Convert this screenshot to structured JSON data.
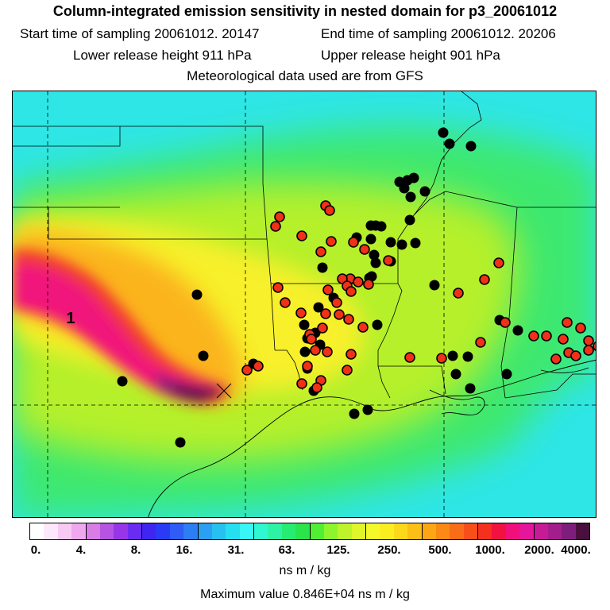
{
  "title": "Column-integrated emission sensitivity in nested domain for p3_20061012",
  "start_label": "Start time of sampling 20061012. 20147",
  "end_label": "End time of sampling 20061012. 20206",
  "lower_label": "Lower release height  911 hPa",
  "upper_label": "Upper release height  901 hPa",
  "met_label": "Meteorological data used are from GFS",
  "map_label": "1",
  "colorbar": {
    "ticks": [
      "0.",
      "4.",
      "8.",
      "16.",
      "31.",
      "63.",
      "125.",
      "250.",
      "500.",
      "1000.",
      "2000.",
      "4000."
    ],
    "colors": [
      "#ffffff",
      "#fde8fb",
      "#f7c9f3",
      "#efa8ee",
      "#d97ce6",
      "#b553e3",
      "#9636e8",
      "#6a2cf0",
      "#3f25f2",
      "#2a3bf5",
      "#2f5cf6",
      "#2c7ef4",
      "#2b9ff2",
      "#27c1ef",
      "#27def0",
      "#38f6f6",
      "#2ff7d2",
      "#2df3a4",
      "#26ec73",
      "#29e44a",
      "#4ff033",
      "#8df52d",
      "#bdf32a",
      "#dff72a",
      "#f4fa29",
      "#fbee20",
      "#fcd81a",
      "#fcbf15",
      "#fca515",
      "#fa8a15",
      "#f96c18",
      "#f84f1a",
      "#f5301f",
      "#f21240",
      "#f0107c",
      "#e5169b",
      "#c81a97",
      "#a41d8c",
      "#7e1e7b",
      "#4a0f3d"
    ],
    "unit": "ns m / kg",
    "max_value_label": "Maximum value  0.846E+04 ns m / kg"
  },
  "stations_black": [
    [
      557,
      166
    ],
    [
      565,
      180
    ],
    [
      592,
      183
    ],
    [
      502,
      228
    ],
    [
      512,
      226
    ],
    [
      520,
      223
    ],
    [
      508,
      236
    ],
    [
      534,
      240
    ],
    [
      516,
      247
    ],
    [
      515,
      276
    ],
    [
      466,
      283
    ],
    [
      472,
      283
    ],
    [
      479,
      284
    ],
    [
      448,
      298
    ],
    [
      466,
      300
    ],
    [
      491,
      304
    ],
    [
      522,
      305
    ],
    [
      505,
      307
    ],
    [
      470,
      320
    ],
    [
      472,
      330
    ],
    [
      491,
      328
    ],
    [
      405,
      336
    ],
    [
      467,
      347
    ],
    [
      464,
      349
    ],
    [
      546,
      358
    ],
    [
      247,
      370
    ],
    [
      419,
      374
    ],
    [
      400,
      386
    ],
    [
      382,
      408
    ],
    [
      474,
      408
    ],
    [
      396,
      418
    ],
    [
      628,
      402
    ],
    [
      651,
      415
    ],
    [
      386,
      425
    ],
    [
      402,
      433
    ],
    [
      383,
      442
    ],
    [
      255,
      447
    ],
    [
      569,
      447
    ],
    [
      588,
      448
    ],
    [
      318,
      457
    ],
    [
      573,
      470
    ],
    [
      386,
      463
    ],
    [
      637,
      470
    ],
    [
      153,
      479
    ],
    [
      394,
      491
    ],
    [
      591,
      488
    ],
    [
      462,
      515
    ],
    [
      445,
      520
    ],
    [
      226,
      556
    ],
    [
      699,
      451
    ]
  ],
  "stations_red": [
    [
      351,
      272
    ],
    [
      409,
      258
    ],
    [
      414,
      264
    ],
    [
      346,
      284
    ],
    [
      379,
      296
    ],
    [
      416,
      303
    ],
    [
      444,
      304
    ],
    [
      458,
      313
    ],
    [
      403,
      316
    ],
    [
      488,
      327
    ],
    [
      627,
      330
    ],
    [
      440,
      350
    ],
    [
      430,
      350
    ],
    [
      436,
      359
    ],
    [
      450,
      354
    ],
    [
      463,
      357
    ],
    [
      349,
      361
    ],
    [
      609,
      351
    ],
    [
      358,
      380
    ],
    [
      576,
      368
    ],
    [
      412,
      364
    ],
    [
      441,
      366
    ],
    [
      423,
      380
    ],
    [
      378,
      393
    ],
    [
      409,
      394
    ],
    [
      426,
      395
    ],
    [
      438,
      401
    ],
    [
      456,
      411
    ],
    [
      635,
      405
    ],
    [
      389,
      420
    ],
    [
      405,
      412
    ],
    [
      391,
      426
    ],
    [
      396,
      440
    ],
    [
      411,
      442
    ],
    [
      441,
      445
    ],
    [
      515,
      449
    ],
    [
      555,
      450
    ],
    [
      604,
      430
    ],
    [
      671,
      422
    ],
    [
      687,
      422
    ],
    [
      708,
      426
    ],
    [
      713,
      405
    ],
    [
      730,
      412
    ],
    [
      740,
      428
    ],
    [
      740,
      440
    ],
    [
      715,
      443
    ],
    [
      752,
      435
    ],
    [
      724,
      447
    ],
    [
      386,
      460
    ],
    [
      403,
      478
    ],
    [
      436,
      465
    ],
    [
      379,
      482
    ],
    [
      398,
      487
    ],
    [
      310,
      465
    ],
    [
      324,
      460
    ],
    [
      699,
      451
    ]
  ]
}
